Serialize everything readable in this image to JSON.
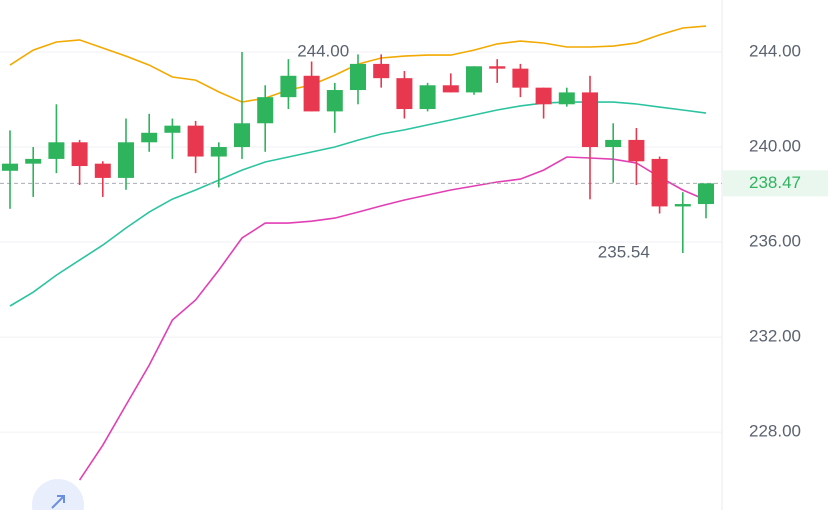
{
  "chart_data": {
    "type": "candlestick",
    "up_color": "#2fb45e",
    "down_color": "#e8384f",
    "open": [
      239.0,
      239.3,
      239.5,
      240.2,
      239.3,
      238.7,
      240.2,
      240.6,
      240.9,
      239.6,
      240.0,
      241.0,
      242.1,
      243.0,
      241.5,
      242.4,
      243.5,
      242.9,
      241.6,
      242.6,
      242.3,
      243.4,
      243.3,
      242.5,
      241.8,
      242.3,
      240.0,
      240.3,
      239.5,
      237.5,
      237.6
    ],
    "high": [
      240.7,
      240.0,
      241.8,
      240.3,
      239.4,
      241.2,
      241.4,
      241.2,
      241.1,
      240.2,
      244.0,
      242.6,
      243.7,
      243.6,
      242.7,
      243.9,
      243.9,
      243.2,
      242.7,
      243.1,
      243.4,
      243.7,
      243.5,
      242.5,
      242.5,
      243.0,
      241.0,
      240.8,
      239.6,
      238.1,
      238.47
    ],
    "low": [
      237.4,
      237.9,
      238.9,
      238.4,
      237.9,
      238.2,
      239.8,
      239.5,
      238.9,
      238.3,
      239.5,
      239.8,
      241.6,
      241.5,
      240.6,
      241.8,
      242.5,
      241.2,
      241.5,
      242.3,
      242.2,
      242.7,
      242.1,
      241.2,
      241.7,
      237.8,
      238.5,
      238.4,
      237.2,
      235.54,
      237.0
    ],
    "close": [
      239.3,
      239.5,
      240.2,
      239.2,
      238.7,
      240.2,
      240.6,
      240.9,
      239.6,
      240.0,
      241.0,
      242.1,
      243.0,
      241.5,
      242.4,
      243.5,
      242.9,
      241.6,
      242.6,
      242.3,
      243.4,
      243.3,
      242.5,
      241.8,
      242.3,
      240.0,
      240.3,
      239.4,
      237.5,
      237.6,
      238.47
    ],
    "lines": [
      {
        "color": "#f2a900",
        "values": [
          243.45,
          244.08,
          244.42,
          244.51,
          244.17,
          243.83,
          243.45,
          242.95,
          242.82,
          242.32,
          241.89,
          242.06,
          242.4,
          242.61,
          243.03,
          243.49,
          243.75,
          243.83,
          243.87,
          243.87,
          244.08,
          244.34,
          244.46,
          244.38,
          244.21,
          244.21,
          244.25,
          244.38,
          244.72,
          245.01,
          245.09
        ]
      },
      {
        "color": "#2cc4a0",
        "values": [
          233.31,
          233.89,
          234.61,
          235.24,
          235.87,
          236.59,
          237.26,
          237.81,
          238.19,
          238.61,
          239.03,
          239.37,
          239.58,
          239.79,
          240.0,
          240.29,
          240.55,
          240.72,
          240.93,
          241.14,
          241.35,
          241.56,
          241.73,
          241.85,
          241.89,
          241.89,
          241.89,
          241.81,
          241.68,
          241.56,
          241.43
        ]
      },
      {
        "color": "#e23fb5",
        "values": [
          null,
          null,
          null,
          225.98,
          227.45,
          229.14,
          230.82,
          232.72,
          233.56,
          234.82,
          236.17,
          236.8,
          236.8,
          236.88,
          237.01,
          237.26,
          237.52,
          237.77,
          237.98,
          238.19,
          238.36,
          238.53,
          238.65,
          239.03,
          239.58,
          239.54,
          239.49,
          239.33,
          238.74,
          238.19,
          237.77
        ]
      }
    ],
    "ylim": [
      224.72,
      246.19
    ],
    "yticks": [
      {
        "value": 228,
        "label": "228.00"
      },
      {
        "value": 232,
        "label": "232.00"
      },
      {
        "value": 236,
        "label": "236.00"
      },
      {
        "value": 240,
        "label": "240.00"
      },
      {
        "value": 244,
        "label": "244.00"
      }
    ],
    "grid": true,
    "annotations": [
      {
        "value": 244.0,
        "label": "244.00",
        "index": 11,
        "side": "right"
      },
      {
        "value": 235.54,
        "label": "235.54",
        "index": 29,
        "side": "left"
      }
    ],
    "last_price": {
      "value": 238.47,
      "label": "238.47",
      "color": "#2fb45e"
    }
  }
}
